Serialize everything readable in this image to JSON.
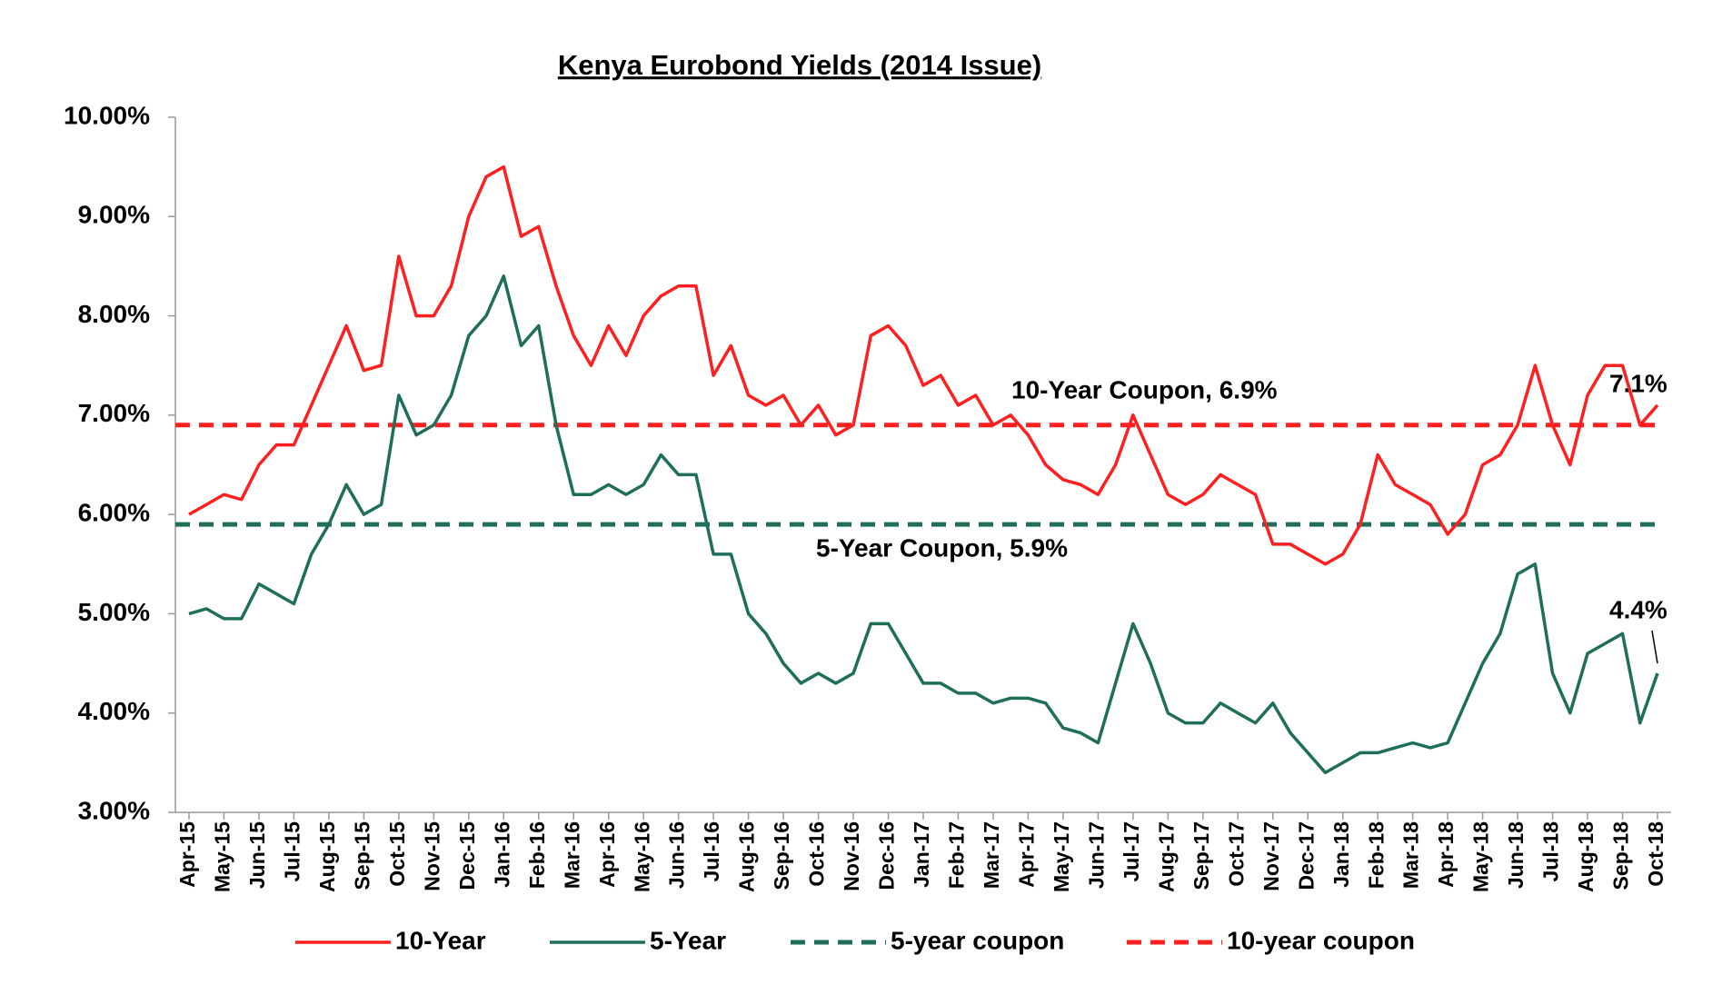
{
  "chart_data": {
    "type": "line",
    "title": "Kenya Eurobond Yields (2014 Issue)",
    "categories": [
      "Apr-15",
      null,
      "May-15",
      null,
      "Jun-15",
      null,
      "Jul-15",
      null,
      "Aug-15",
      null,
      "Sep-15",
      null,
      "Oct-15",
      null,
      "Nov-15",
      null,
      "Dec-15",
      null,
      "Jan-16",
      null,
      "Feb-16",
      null,
      "Mar-16",
      null,
      "Apr-16",
      null,
      "May-16",
      null,
      "Jun-16",
      null,
      "Jul-16",
      null,
      "Aug-16",
      null,
      "Sep-16",
      null,
      "Oct-16",
      null,
      "Nov-16",
      null,
      "Dec-16",
      null,
      "Jan-17",
      null,
      "Feb-17",
      null,
      "Mar-17",
      null,
      "Apr-17",
      null,
      "May-17",
      null,
      "Jun-17",
      null,
      "Jul-17",
      null,
      "Aug-17",
      null,
      "Sep-17",
      null,
      "Oct-17",
      null,
      "Nov-17",
      null,
      "Dec-17",
      null,
      "Jan-18",
      null,
      "Feb-18",
      null,
      "Mar-18",
      null,
      "Apr-18",
      null,
      "May-18",
      null,
      "Jun-18",
      null,
      "Jul-18",
      null,
      "Aug-18",
      null,
      "Sep-18",
      null,
      "Oct-18"
    ],
    "series": [
      {
        "name": "10-Year",
        "color": "#ff1f1f",
        "values": [
          6.0,
          6.1,
          6.2,
          6.15,
          6.5,
          6.7,
          6.7,
          7.1,
          7.5,
          7.9,
          7.45,
          7.5,
          8.6,
          8.0,
          8.0,
          8.3,
          9.0,
          9.4,
          9.5,
          8.8,
          8.9,
          8.3,
          7.8,
          7.5,
          7.9,
          7.6,
          8.0,
          8.2,
          8.3,
          8.3,
          7.4,
          7.7,
          7.2,
          7.1,
          7.2,
          6.9,
          7.1,
          6.8,
          6.9,
          7.8,
          7.9,
          7.7,
          7.3,
          7.4,
          7.1,
          7.2,
          6.9,
          7.0,
          6.8,
          6.5,
          6.35,
          6.3,
          6.2,
          6.5,
          7.0,
          6.6,
          6.2,
          6.1,
          6.2,
          6.4,
          6.3,
          6.2,
          5.7,
          5.7,
          5.6,
          5.5,
          5.6,
          5.9,
          6.6,
          6.3,
          6.2,
          6.1,
          5.8,
          6.0,
          6.5,
          6.6,
          6.9,
          7.5,
          6.9,
          6.5,
          7.2,
          7.5,
          7.5,
          6.9,
          7.1
        ]
      },
      {
        "name": "5-Year",
        "color": "#1f6e5a",
        "values": [
          5.0,
          5.05,
          4.95,
          4.95,
          5.3,
          5.2,
          5.1,
          5.6,
          5.9,
          6.3,
          6.0,
          6.1,
          7.2,
          6.8,
          6.9,
          7.2,
          7.8,
          8.0,
          8.4,
          7.7,
          7.9,
          6.9,
          6.2,
          6.2,
          6.3,
          6.2,
          6.3,
          6.6,
          6.4,
          6.4,
          5.6,
          5.6,
          5.0,
          4.8,
          4.5,
          4.3,
          4.4,
          4.3,
          4.4,
          4.9,
          4.9,
          4.6,
          4.3,
          4.3,
          4.2,
          4.2,
          4.1,
          4.15,
          4.15,
          4.1,
          3.85,
          3.8,
          3.7,
          4.3,
          4.9,
          4.5,
          4.0,
          3.9,
          3.9,
          4.1,
          4.0,
          3.9,
          4.1,
          3.8,
          3.6,
          3.4,
          3.5,
          3.6,
          3.6,
          3.65,
          3.7,
          3.65,
          3.7,
          4.1,
          4.5,
          4.8,
          5.4,
          5.5,
          4.4,
          4.0,
          4.6,
          4.7,
          4.8,
          3.9,
          4.4
        ]
      }
    ],
    "reference_lines": [
      {
        "name": "5-year coupon",
        "color": "#1f6e5a",
        "value": 5.9
      },
      {
        "name": "10-year coupon",
        "color": "#ff1f1f",
        "value": 6.9
      }
    ],
    "annotations": [
      "10-Year Coupon, 6.9%",
      "5-Year Coupon, 5.9%",
      "7.1%",
      "4.4%"
    ],
    "ylim": [
      3,
      10
    ],
    "yticks": [
      {
        "value": 3,
        "label": "3.00%"
      },
      {
        "value": 4,
        "label": "4.00%"
      },
      {
        "value": 5,
        "label": "5.00%"
      },
      {
        "value": 6,
        "label": "6.00%"
      },
      {
        "value": 7,
        "label": "7.00%"
      },
      {
        "value": 8,
        "label": "8.00%"
      },
      {
        "value": 9,
        "label": "9.00%"
      },
      {
        "value": 10,
        "label": "10.00%"
      }
    ]
  }
}
